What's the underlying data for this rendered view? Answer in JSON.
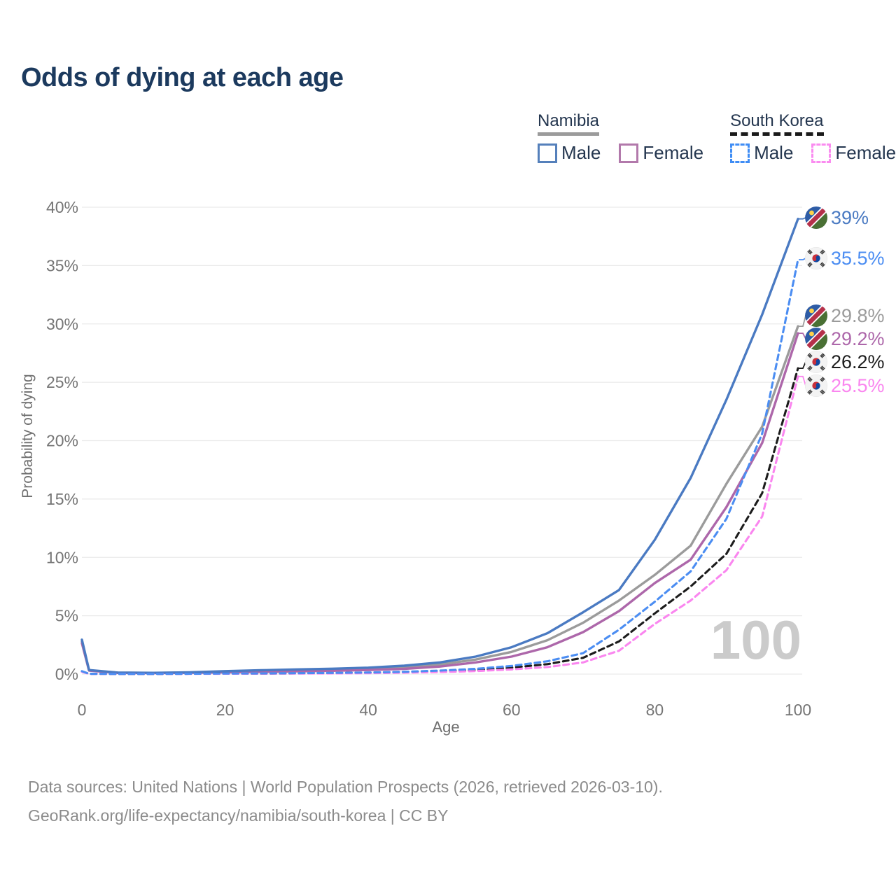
{
  "title": "Odds of dying at each age",
  "legend": {
    "groups": [
      {
        "label": "Namibia",
        "underline_color": "#9b9b9b",
        "underline_style": "solid",
        "items": [
          {
            "label": "Male",
            "color": "#5580bb",
            "dashed": false
          },
          {
            "label": "Female",
            "color": "#b279ab",
            "dashed": false
          }
        ]
      },
      {
        "label": "South Korea",
        "underline_color": "#1a1a1a",
        "underline_style": "dashed",
        "items": [
          {
            "label": "Male",
            "color": "#3f8df5",
            "dashed": true
          },
          {
            "label": "Female",
            "color": "#fa8cf0",
            "dashed": true
          }
        ]
      }
    ]
  },
  "chart_data": {
    "type": "line",
    "title": "Odds of dying at each age",
    "xlabel": "Age",
    "ylabel": "Probability of dying",
    "xlim": [
      0,
      100
    ],
    "ylim": [
      0,
      40
    ],
    "x_ticks": [
      0,
      20,
      40,
      60,
      80,
      100
    ],
    "y_grid": [
      {
        "value": 0,
        "label": "0%"
      },
      {
        "value": 5,
        "label": "5%"
      },
      {
        "value": 10,
        "label": "10%"
      },
      {
        "value": 15,
        "label": "15%"
      },
      {
        "value": 20,
        "label": "20%"
      },
      {
        "value": 25,
        "label": "25%"
      },
      {
        "value": 30,
        "label": "30%"
      },
      {
        "value": 35,
        "label": "35%"
      },
      {
        "value": 40,
        "label": "40%"
      }
    ],
    "grid": "horizontal",
    "legend_position": "top-right",
    "watermark": "100",
    "ages": [
      0,
      1,
      5,
      10,
      15,
      20,
      25,
      30,
      35,
      40,
      45,
      50,
      55,
      60,
      65,
      70,
      75,
      80,
      85,
      90,
      95,
      100
    ],
    "series": [
      {
        "key": "na-both",
        "name": "Namibia Both sexes",
        "country": "Namibia",
        "sex": "Both",
        "color": "#9b9b9b",
        "dashed": false,
        "flag_icon": "namibia-flag-icon",
        "flag": "na",
        "end_label": "29.8%",
        "end_value": 29.8,
        "values": [
          2.8,
          0.32,
          0.12,
          0.1,
          0.13,
          0.2,
          0.26,
          0.31,
          0.36,
          0.44,
          0.57,
          0.82,
          1.25,
          1.9,
          2.9,
          4.4,
          6.3,
          8.5,
          11.0,
          16.3,
          21.2,
          29.8
        ]
      },
      {
        "key": "na-female",
        "name": "Namibia Female",
        "country": "Namibia",
        "sex": "Female",
        "color": "#ad67aa",
        "dashed": false,
        "flag_icon": "namibia-flag-icon",
        "flag": "na",
        "end_label": "29.2%",
        "end_value": 29.2,
        "values": [
          2.65,
          0.3,
          0.1,
          0.09,
          0.11,
          0.15,
          0.19,
          0.24,
          0.28,
          0.35,
          0.45,
          0.65,
          1.0,
          1.5,
          2.3,
          3.6,
          5.4,
          7.8,
          9.8,
          14.3,
          19.8,
          29.2
        ]
      },
      {
        "key": "na-male",
        "name": "Namibia Male",
        "country": "Namibia",
        "sex": "Male",
        "color": "#4a7ac2",
        "dashed": false,
        "flag_icon": "namibia-flag-icon",
        "flag": "na",
        "end_label": "39%",
        "end_value": 39,
        "values": [
          2.95,
          0.35,
          0.13,
          0.11,
          0.15,
          0.25,
          0.33,
          0.4,
          0.46,
          0.55,
          0.72,
          1.0,
          1.5,
          2.3,
          3.5,
          5.3,
          7.2,
          11.5,
          16.8,
          23.5,
          30.8,
          39.0
        ]
      },
      {
        "key": "kr-both",
        "name": "South Korea Both sexes",
        "country": "South Korea",
        "sex": "Both",
        "color": "#1c1c1c",
        "dashed": true,
        "flag_icon": "south-korea-flag-icon",
        "flag": "kr",
        "end_label": "26.2%",
        "end_value": 26.2,
        "values": [
          0.22,
          0.03,
          0.02,
          0.02,
          0.03,
          0.04,
          0.05,
          0.06,
          0.08,
          0.11,
          0.16,
          0.24,
          0.36,
          0.55,
          0.85,
          1.4,
          2.8,
          5.2,
          7.5,
          10.3,
          15.5,
          26.2
        ]
      },
      {
        "key": "kr-female",
        "name": "South Korea Female",
        "country": "South Korea",
        "sex": "Female",
        "color": "#fa86ef",
        "dashed": true,
        "flag_icon": "south-korea-flag-icon",
        "flag": "kr",
        "end_label": "25.5%",
        "end_value": 25.5,
        "values": [
          0.2,
          0.02,
          0.015,
          0.015,
          0.02,
          0.03,
          0.04,
          0.05,
          0.06,
          0.08,
          0.12,
          0.18,
          0.26,
          0.4,
          0.6,
          1.0,
          2.0,
          4.3,
          6.3,
          8.9,
          13.5,
          25.5
        ]
      },
      {
        "key": "kr-male",
        "name": "South Korea Male",
        "country": "South Korea",
        "sex": "Male",
        "color": "#4b8df2",
        "dashed": true,
        "flag_icon": "south-korea-flag-icon",
        "flag": "kr",
        "end_label": "35.5%",
        "end_value": 35.5,
        "values": [
          0.25,
          0.03,
          0.02,
          0.02,
          0.03,
          0.05,
          0.06,
          0.08,
          0.1,
          0.14,
          0.2,
          0.3,
          0.45,
          0.7,
          1.1,
          1.8,
          3.8,
          6.2,
          8.8,
          13.3,
          20.6,
          35.5
        ]
      }
    ]
  },
  "footer": {
    "line1": "Data sources: United Nations | World Population Prospects (2026, retrieved 2026-03-10).",
    "line2": "GeoRank.org/life-expectancy/namibia/south-korea | CC BY"
  }
}
